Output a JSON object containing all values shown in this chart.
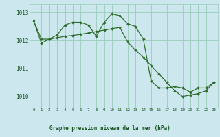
{
  "title": "Graphe pression niveau de la mer (hPa)",
  "bg_color": "#cce8ee",
  "label_bg_color": "#2d6b3a",
  "grid_color": "#99ccbb",
  "line_color": "#2d6b2a",
  "marker_color": "#2d6b2a",
  "text_color": "#1a5520",
  "label_text_color": "#2d6b2a",
  "xlim": [
    -0.5,
    23.5
  ],
  "ylim": [
    1009.6,
    1013.3
  ],
  "yticks": [
    1010,
    1011,
    1012,
    1013
  ],
  "xticks": [
    0,
    1,
    2,
    3,
    4,
    5,
    6,
    7,
    8,
    9,
    10,
    11,
    12,
    13,
    14,
    15,
    16,
    17,
    18,
    19,
    20,
    21,
    22,
    23
  ],
  "series1": [
    1012.7,
    1011.9,
    1012.05,
    1012.2,
    1012.55,
    1012.65,
    1012.65,
    1012.55,
    1012.15,
    1012.65,
    1012.95,
    1012.88,
    1012.6,
    1012.5,
    1012.05,
    1010.55,
    1010.3,
    1010.3,
    1010.35,
    1010.3,
    1010.15,
    1010.3,
    1010.3,
    1010.5
  ],
  "series2": [
    1012.7,
    1012.05,
    1012.05,
    1012.1,
    1012.15,
    1012.18,
    1012.22,
    1012.27,
    1012.32,
    1012.37,
    1012.42,
    1012.47,
    1011.95,
    1011.65,
    1011.4,
    1011.1,
    1010.8,
    1010.5,
    1010.2,
    1010.0,
    1010.05,
    1010.1,
    1010.2,
    1010.5
  ]
}
